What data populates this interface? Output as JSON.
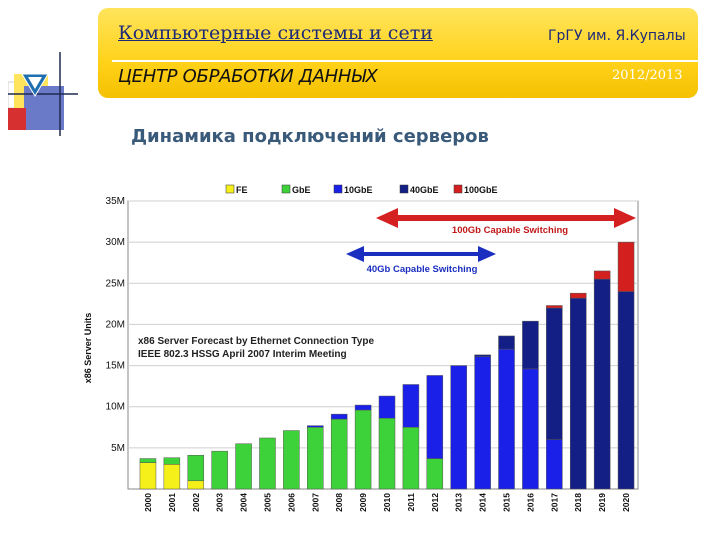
{
  "header": {
    "title": "Компьютерные системы и сети",
    "university": "ГрГУ им. Я.Купалы",
    "subtitle": "ЦЕНТР ОБРАБОТКИ ДАННЫХ",
    "year": "2012/2013"
  },
  "slide": {
    "title": "Динамика подключений серверов"
  },
  "colors": {
    "FE": "#f5ef1a",
    "GbE": "#3ed23a",
    "10GbE": "#1a20e8",
    "40GbE": "#141f86",
    "100GbE": "#d41f1f",
    "red_arrow": "#d42020",
    "blue_arrow": "#1a2ec0"
  },
  "chart_data": {
    "type": "bar",
    "stacked": true,
    "ylabel": "x86 Server Units",
    "ylim": [
      0,
      35
    ],
    "yticks": [
      "5M",
      "10M",
      "15M",
      "20M",
      "25M",
      "30M",
      "35M"
    ],
    "ytick_values": [
      5,
      10,
      15,
      20,
      25,
      30,
      35
    ],
    "grid": true,
    "legend_position": "top",
    "categories": [
      "2000",
      "2001",
      "2002",
      "2003",
      "2004",
      "2005",
      "2006",
      "2007",
      "2008",
      "2009",
      "2010",
      "2011",
      "2012",
      "2013",
      "2014",
      "2015",
      "2016",
      "2017",
      "2018",
      "2019",
      "2020"
    ],
    "series": [
      {
        "name": "FE",
        "values": [
          3.2,
          3.0,
          1.0,
          0,
          0,
          0,
          0,
          0,
          0,
          0,
          0,
          0,
          0,
          0,
          0,
          0,
          0,
          0,
          0,
          0,
          0
        ]
      },
      {
        "name": "GbE",
        "values": [
          0.5,
          0.8,
          3.1,
          4.6,
          5.5,
          6.2,
          7.1,
          7.5,
          8.5,
          9.6,
          8.6,
          7.5,
          3.7,
          0,
          0,
          0,
          0,
          0,
          0,
          0,
          0
        ]
      },
      {
        "name": "10GbE",
        "values": [
          0,
          0,
          0,
          0,
          0,
          0,
          0,
          0.2,
          0.6,
          0.6,
          2.7,
          5.2,
          10.1,
          15.0,
          16.1,
          17.0,
          14.6,
          6.0,
          0,
          0,
          0
        ]
      },
      {
        "name": "40GbE",
        "values": [
          0,
          0,
          0,
          0,
          0,
          0,
          0,
          0,
          0,
          0,
          0,
          0,
          0,
          0,
          0.2,
          1.6,
          5.8,
          16.0,
          23.2,
          25.5,
          24.0
        ]
      },
      {
        "name": "100GbE",
        "values": [
          0,
          0,
          0,
          0,
          0,
          0,
          0,
          0,
          0,
          0,
          0,
          0,
          0,
          0,
          0,
          0,
          0,
          0.3,
          0.6,
          1.0,
          6.0
        ]
      }
    ],
    "annotations": {
      "forecast_line1": "x86 Server Forecast by Ethernet Connection Type",
      "forecast_line2": "IEEE 802.3 HSSG  April 2007 Interim Meeting",
      "switch100": "100Gb Capable Switching",
      "switch40": "40Gb Capable Switching"
    }
  }
}
